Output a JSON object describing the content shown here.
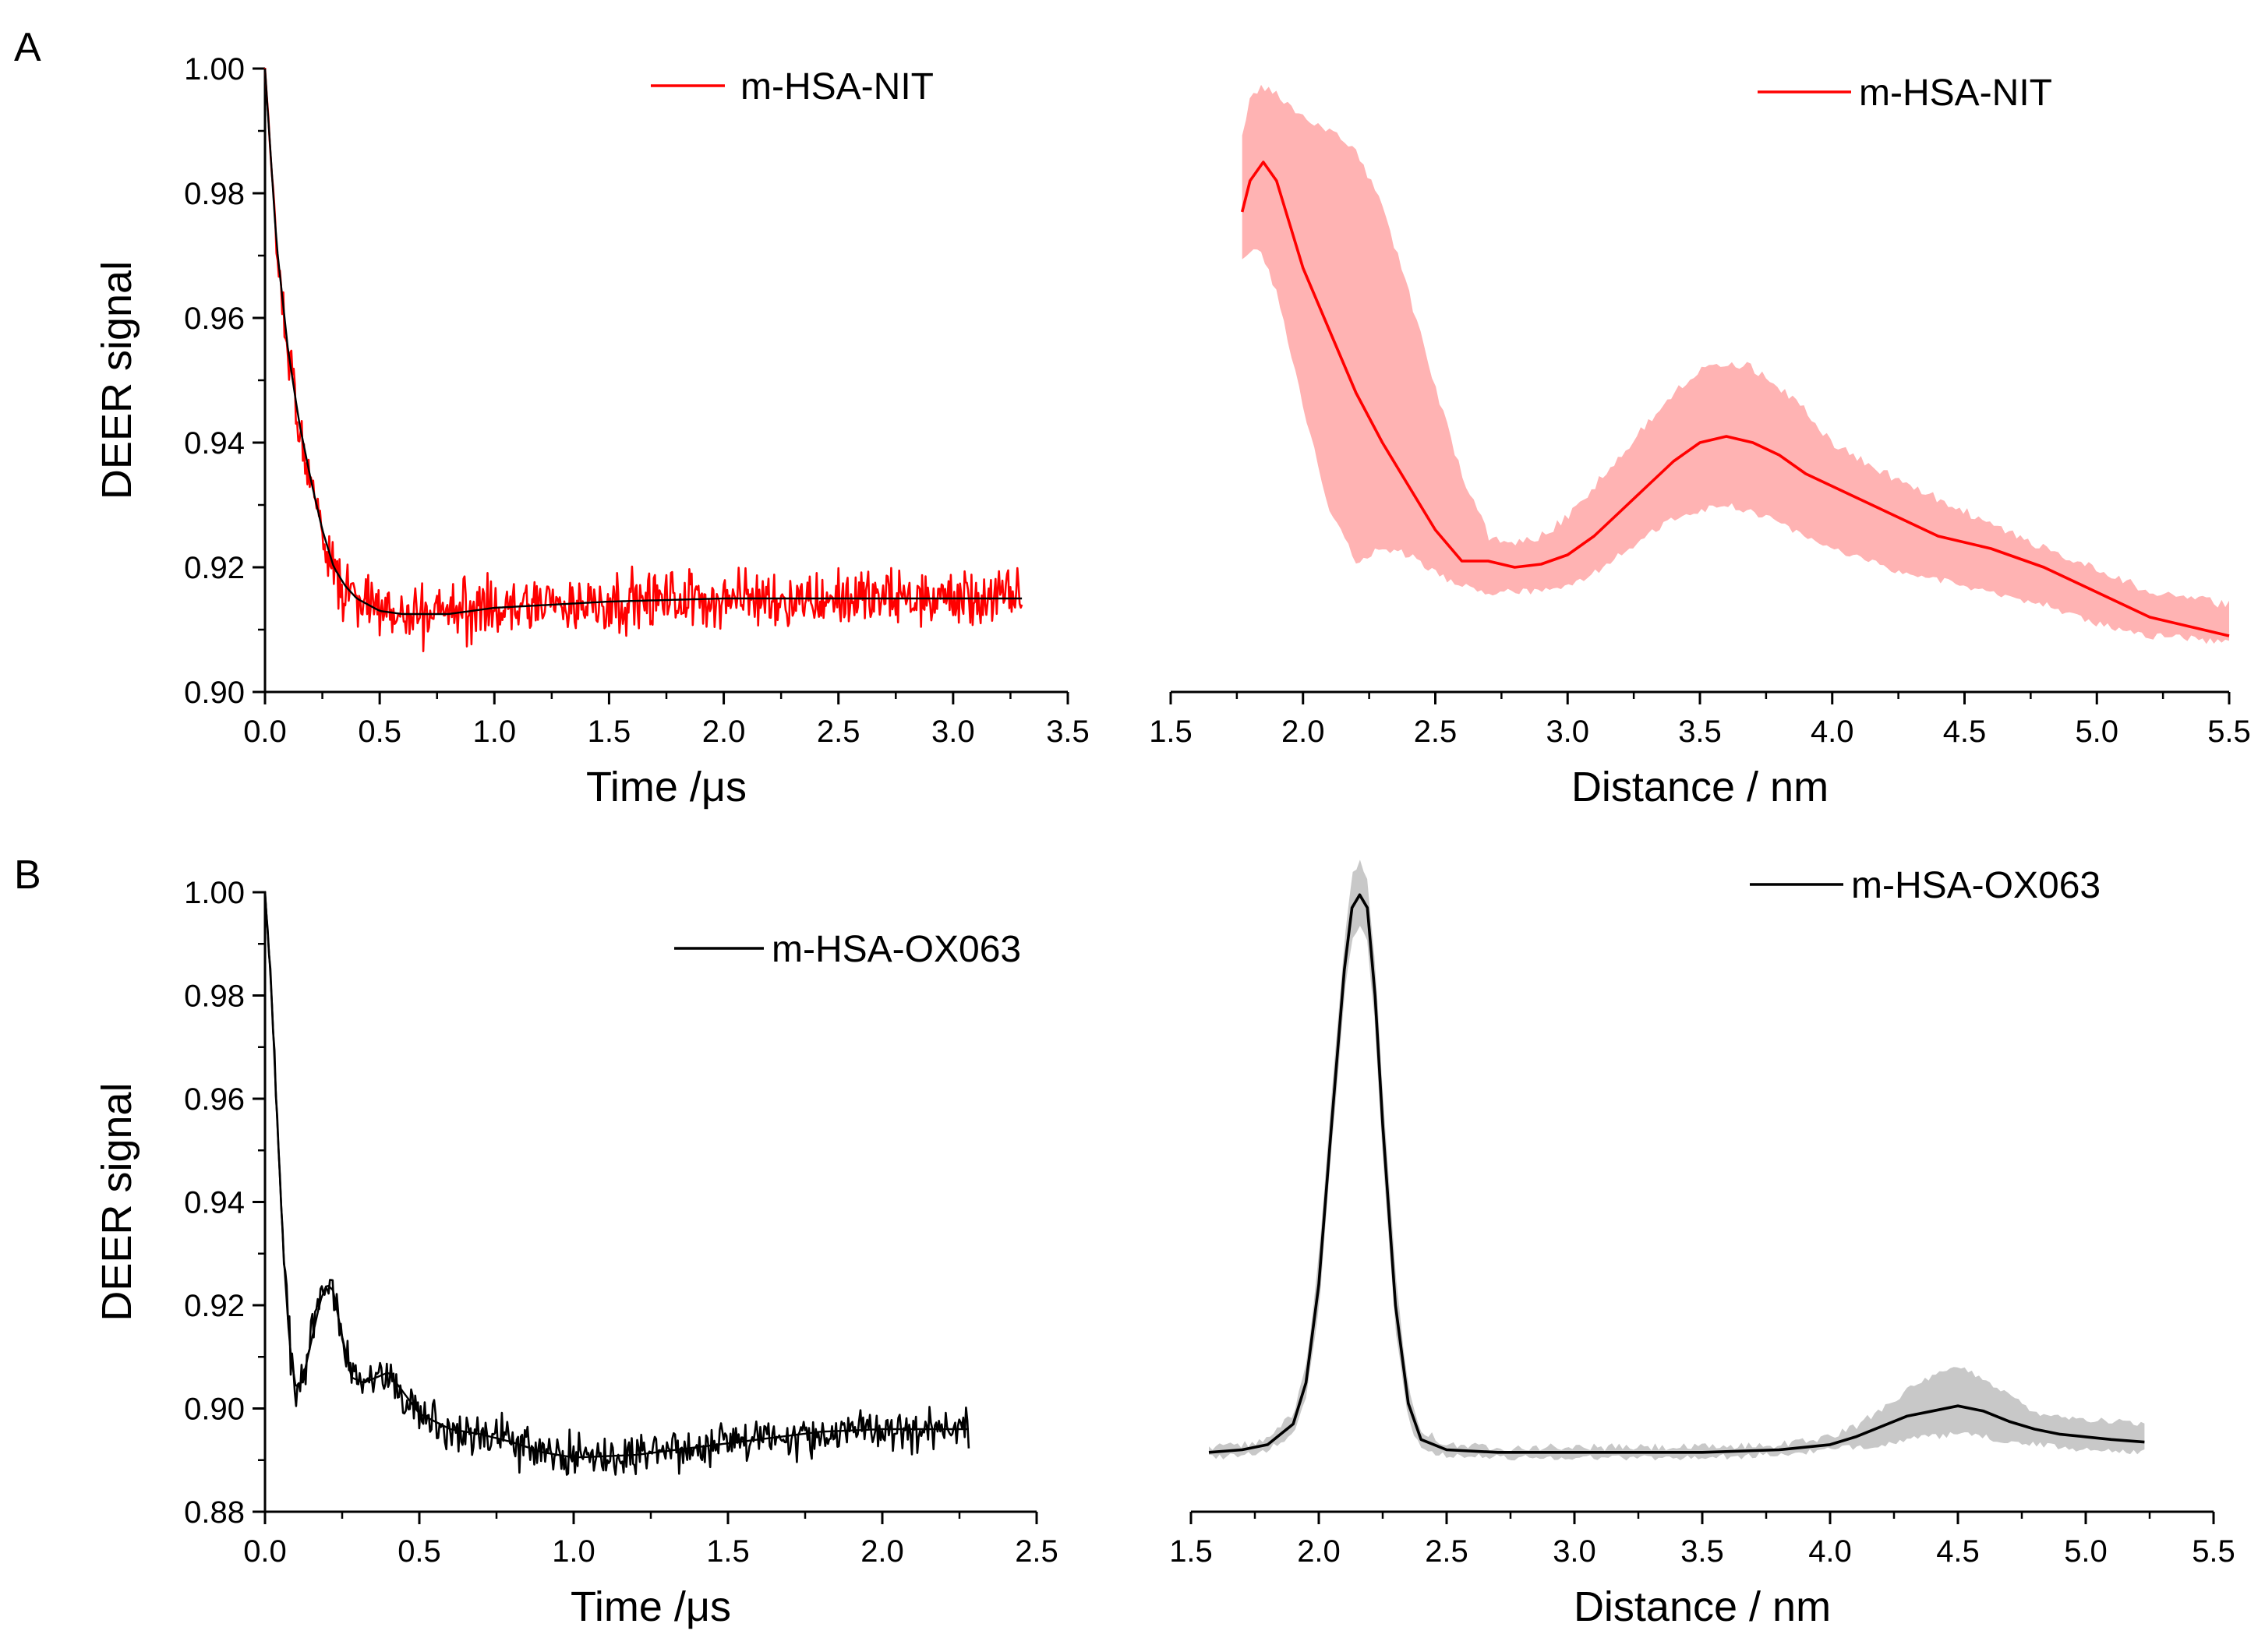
{
  "panels": [
    {
      "label": "A"
    },
    {
      "label": "B"
    }
  ],
  "chart_data": [
    {
      "id": "A-left",
      "type": "line",
      "panel": "A",
      "xlabel": "Time /μs",
      "ylabel": "DEER signal",
      "xlim": [
        0.0,
        3.5
      ],
      "ylim": [
        0.9,
        1.0
      ],
      "xticks": [
        "0.0",
        "0.5",
        "1.0",
        "1.5",
        "2.0",
        "2.5",
        "3.0",
        "3.5"
      ],
      "yticks": [
        "0.90",
        "0.92",
        "0.94",
        "0.96",
        "0.98",
        "1.00"
      ],
      "legend": "m-HSA-NIT",
      "legend_position": "top-right",
      "color": "#ff0000",
      "fit_color": "#000000",
      "signal": {
        "x_end": 3.3,
        "offset": 0.915,
        "amplitude": 0.085,
        "decay": 0.14,
        "noise": 0.0035,
        "samples": 660
      },
      "fit": [
        [
          0.0,
          1.0
        ],
        [
          0.05,
          0.972
        ],
        [
          0.1,
          0.955
        ],
        [
          0.15,
          0.943
        ],
        [
          0.2,
          0.934
        ],
        [
          0.25,
          0.926
        ],
        [
          0.3,
          0.92
        ],
        [
          0.35,
          0.917
        ],
        [
          0.4,
          0.915
        ],
        [
          0.5,
          0.913
        ],
        [
          0.6,
          0.9125
        ],
        [
          0.8,
          0.9125
        ],
        [
          1.0,
          0.9135
        ],
        [
          1.5,
          0.9145
        ],
        [
          2.0,
          0.915
        ],
        [
          2.5,
          0.915
        ],
        [
          3.3,
          0.915
        ]
      ]
    },
    {
      "id": "A-right",
      "type": "line",
      "panel": "A",
      "xlabel": "Distance / nm",
      "xlim": [
        1.5,
        5.5
      ],
      "ylim": [
        0.9,
        1.0
      ],
      "xticks": [
        "1.5",
        "2.0",
        "2.5",
        "3.0",
        "3.5",
        "4.0",
        "4.5",
        "5.0",
        "5.5"
      ],
      "legend": "m-HSA-NIT",
      "legend_position": "top-right",
      "color": "#ff0000",
      "band_color": "#ffb3b3",
      "x": [
        1.77,
        1.8,
        1.85,
        1.9,
        2.0,
        2.1,
        2.2,
        2.3,
        2.4,
        2.5,
        2.6,
        2.7,
        2.8,
        2.9,
        3.0,
        3.1,
        3.2,
        3.3,
        3.4,
        3.5,
        3.6,
        3.7,
        3.8,
        3.9,
        4.0,
        4.2,
        4.4,
        4.6,
        4.8,
        5.0,
        5.2,
        5.5
      ],
      "y": [
        0.977,
        0.982,
        0.985,
        0.982,
        0.968,
        0.958,
        0.948,
        0.94,
        0.933,
        0.926,
        0.921,
        0.921,
        0.92,
        0.9205,
        0.922,
        0.925,
        0.929,
        0.933,
        0.937,
        0.94,
        0.941,
        0.94,
        0.938,
        0.935,
        0.933,
        0.929,
        0.925,
        0.923,
        0.92,
        0.916,
        0.912,
        0.909
      ],
      "upper": [
        0.99,
        0.995,
        0.997,
        0.996,
        0.992,
        0.99,
        0.987,
        0.978,
        0.964,
        0.949,
        0.935,
        0.925,
        0.924,
        0.925,
        0.928,
        0.933,
        0.938,
        0.943,
        0.948,
        0.952,
        0.953,
        0.952,
        0.949,
        0.945,
        0.94,
        0.935,
        0.931,
        0.927,
        0.923,
        0.92,
        0.916,
        0.914
      ],
      "lower": [
        0.969,
        0.971,
        0.97,
        0.964,
        0.946,
        0.929,
        0.921,
        0.923,
        0.922,
        0.919,
        0.917,
        0.916,
        0.916,
        0.916,
        0.917,
        0.919,
        0.922,
        0.925,
        0.928,
        0.929,
        0.93,
        0.929,
        0.927,
        0.925,
        0.923,
        0.92,
        0.918,
        0.916,
        0.914,
        0.911,
        0.909,
        0.908
      ]
    },
    {
      "id": "B-left",
      "type": "line",
      "panel": "B",
      "xlabel": "Time /μs",
      "ylabel": "DEER signal",
      "xlim": [
        0.0,
        2.5
      ],
      "ylim": [
        0.88,
        1.0
      ],
      "xticks": [
        "0.0",
        "0.5",
        "1.0",
        "1.5",
        "2.0",
        "2.5"
      ],
      "yticks": [
        "0.88",
        "0.90",
        "0.92",
        "0.94",
        "0.96",
        "0.98",
        "1.00"
      ],
      "legend": "m-HSA-OX063",
      "legend_position": "top-right",
      "color": "#000000",
      "fit_color": "#000000",
      "signal": {
        "x_end": 2.28,
        "noise": 0.003,
        "samples": 520
      },
      "fit": [
        [
          0.0,
          1.0
        ],
        [
          0.02,
          0.982
        ],
        [
          0.04,
          0.955
        ],
        [
          0.06,
          0.93
        ],
        [
          0.08,
          0.912
        ],
        [
          0.1,
          0.904
        ],
        [
          0.12,
          0.905
        ],
        [
          0.15,
          0.913
        ],
        [
          0.18,
          0.921
        ],
        [
          0.2,
          0.924
        ],
        [
          0.22,
          0.923
        ],
        [
          0.25,
          0.914
        ],
        [
          0.28,
          0.906
        ],
        [
          0.32,
          0.905
        ],
        [
          0.36,
          0.906
        ],
        [
          0.4,
          0.907
        ],
        [
          0.45,
          0.903
        ],
        [
          0.5,
          0.899
        ],
        [
          0.6,
          0.896
        ],
        [
          0.7,
          0.895
        ],
        [
          0.8,
          0.8935
        ],
        [
          0.9,
          0.8915
        ],
        [
          1.0,
          0.8905
        ],
        [
          1.2,
          0.891
        ],
        [
          1.4,
          0.8925
        ],
        [
          1.6,
          0.894
        ],
        [
          1.8,
          0.8955
        ],
        [
          2.0,
          0.896
        ],
        [
          2.28,
          0.896
        ]
      ]
    },
    {
      "id": "B-right",
      "type": "line",
      "panel": "B",
      "xlabel": "Distance / nm",
      "xlim": [
        1.5,
        5.5
      ],
      "ylim": [
        0.88,
        1.0
      ],
      "xticks": [
        "1.5",
        "2.0",
        "2.5",
        "3.0",
        "3.5",
        "4.0",
        "4.5",
        "5.0",
        "5.5"
      ],
      "legend": "m-HSA-OX063",
      "legend_position": "top-right",
      "color": "#000000",
      "band_color": "#c8c8c8",
      "x": [
        1.57,
        1.7,
        1.8,
        1.9,
        1.95,
        2.0,
        2.05,
        2.1,
        2.13,
        2.16,
        2.19,
        2.22,
        2.25,
        2.3,
        2.35,
        2.4,
        2.5,
        2.7,
        3.0,
        3.5,
        3.8,
        4.0,
        4.1,
        4.2,
        4.3,
        4.4,
        4.5,
        4.6,
        4.7,
        4.8,
        4.9,
        5.0,
        5.1,
        5.23
      ],
      "y": [
        0.8915,
        0.892,
        0.893,
        0.897,
        0.905,
        0.924,
        0.955,
        0.985,
        0.997,
        0.9995,
        0.997,
        0.98,
        0.955,
        0.92,
        0.901,
        0.894,
        0.892,
        0.8915,
        0.8915,
        0.8915,
        0.892,
        0.893,
        0.8945,
        0.8965,
        0.8985,
        0.8995,
        0.9005,
        0.8995,
        0.8975,
        0.896,
        0.895,
        0.8945,
        0.894,
        0.8935
      ],
      "upper": [
        0.8925,
        0.893,
        0.894,
        0.899,
        0.908,
        0.929,
        0.96,
        0.99,
        1.003,
        1.006,
        1.002,
        0.986,
        0.962,
        0.926,
        0.904,
        0.896,
        0.893,
        0.8925,
        0.8925,
        0.8925,
        0.893,
        0.8945,
        0.8965,
        0.9,
        0.9035,
        0.906,
        0.908,
        0.906,
        0.9025,
        0.8995,
        0.8985,
        0.898,
        0.8975,
        0.897
      ],
      "lower": [
        0.8905,
        0.891,
        0.892,
        0.895,
        0.902,
        0.919,
        0.95,
        0.98,
        0.991,
        0.993,
        0.991,
        0.974,
        0.949,
        0.915,
        0.898,
        0.892,
        0.891,
        0.8905,
        0.8905,
        0.8905,
        0.891,
        0.892,
        0.8925,
        0.893,
        0.894,
        0.8945,
        0.895,
        0.8945,
        0.8935,
        0.893,
        0.8925,
        0.892,
        0.892,
        0.8915
      ]
    }
  ]
}
